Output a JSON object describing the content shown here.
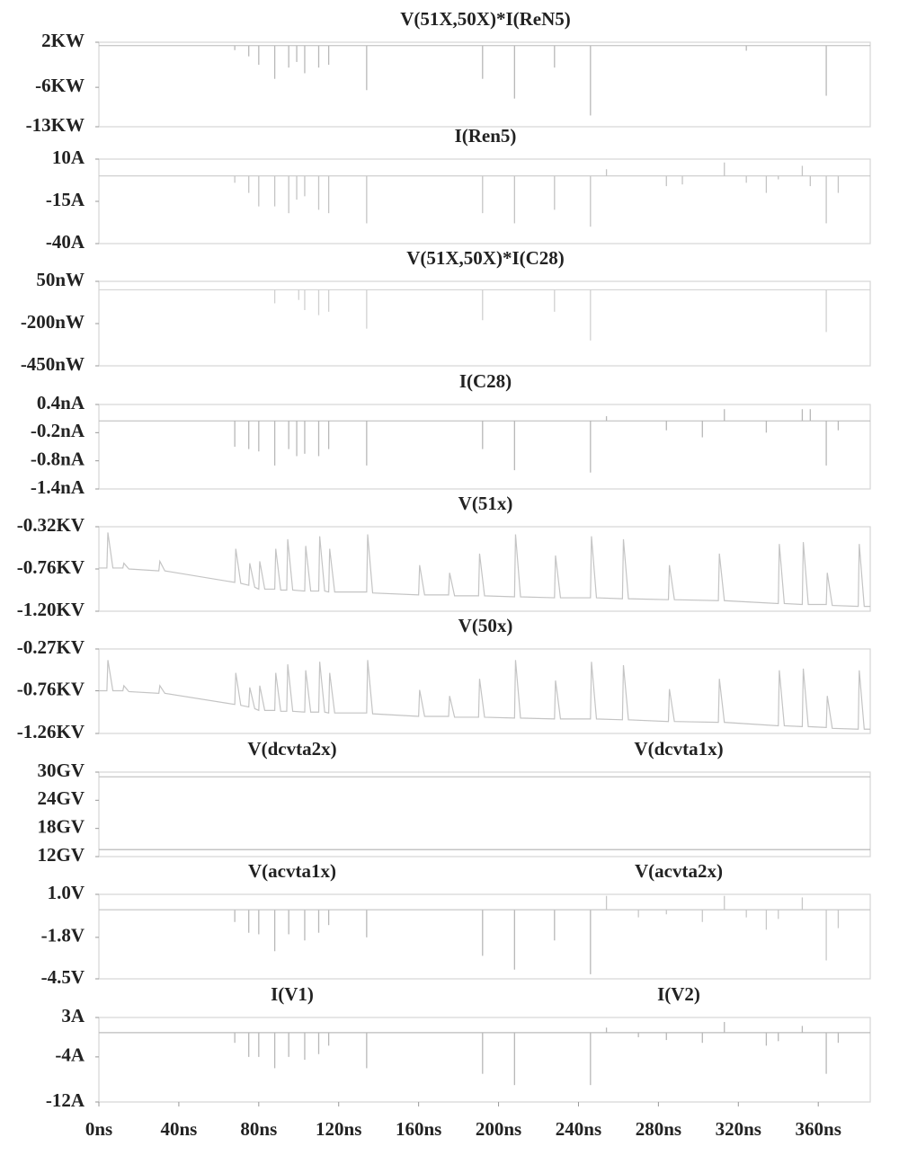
{
  "chart_data": [
    {
      "type": "spike",
      "xlim": [
        0,
        386
      ],
      "ylim": [
        -13,
        2
      ],
      "yticks": [
        {
          "value": 2,
          "label": "2KW"
        },
        {
          "value": -6,
          "label": "-6KW"
        },
        {
          "value": -13,
          "label": "-13KW"
        }
      ],
      "series": [
        {
          "name": "V(51X,50X)*I(ReN5)",
          "color": "#b8b8b8",
          "label_color": "#333333",
          "base": 1.4,
          "x": [
            68,
            75,
            80,
            88,
            95,
            99,
            103,
            110,
            115,
            134,
            192,
            208,
            228,
            246,
            324,
            364
          ],
          "values": [
            0.6,
            -0.5,
            -2,
            -4.5,
            -2.5,
            -1.5,
            -3.5,
            -2.5,
            -2,
            -6.5,
            -4.5,
            -8,
            -2.5,
            -11,
            0.5,
            -7.5
          ]
        }
      ]
    },
    {
      "type": "spike",
      "xlim": [
        0,
        386
      ],
      "ylim": [
        -40,
        10
      ],
      "yticks": [
        {
          "value": 10,
          "label": "10A"
        },
        {
          "value": -15,
          "label": "-15A"
        },
        {
          "value": -40,
          "label": "-40A"
        }
      ],
      "series": [
        {
          "name": "I(Ren5)",
          "color": "#c4c4c4",
          "label_color": "#8a8a8a",
          "base": 0,
          "x": [
            68,
            75,
            80,
            88,
            95,
            99,
            103,
            110,
            115,
            134,
            192,
            208,
            228,
            246,
            254,
            284,
            292,
            313,
            324,
            334,
            340,
            352,
            356,
            364,
            370
          ],
          "values": [
            -4,
            -10,
            -18,
            -18,
            -22,
            -14,
            -12,
            -20,
            -22,
            -28,
            -22,
            -28,
            -20,
            -30,
            4,
            -6,
            -5,
            8,
            -4,
            -10,
            -2,
            6,
            -6,
            -28,
            -10
          ]
        }
      ]
    },
    {
      "type": "spike",
      "xlim": [
        0,
        386
      ],
      "ylim": [
        -450,
        50
      ],
      "yticks": [
        {
          "value": 50,
          "label": "50nW"
        },
        {
          "value": -200,
          "label": "-200nW"
        },
        {
          "value": -450,
          "label": "-450nW"
        }
      ],
      "series": [
        {
          "name": "V(51X,50X)*I(C28)",
          "color": "#d0d0d0",
          "label_color": "#cfcfcf",
          "base": 0,
          "x": [
            88,
            100,
            103,
            110,
            115,
            134,
            192,
            228,
            246,
            364
          ],
          "values": [
            -80,
            -60,
            -120,
            -150,
            -130,
            -230,
            -180,
            -130,
            -300,
            -250
          ]
        }
      ]
    },
    {
      "type": "spike",
      "xlim": [
        0,
        386
      ],
      "ylim": [
        -1.4,
        0.4
      ],
      "yticks": [
        {
          "value": 0.4,
          "label": "0.4nA"
        },
        {
          "value": -0.2,
          "label": "-0.2nA"
        },
        {
          "value": -0.8,
          "label": "-0.8nA"
        },
        {
          "value": -1.4,
          "label": "-1.4nA"
        }
      ],
      "series": [
        {
          "name": "I(C28)",
          "color": "#b8b8b8",
          "label_color": "#444444",
          "base": 0.05,
          "x": [
            68,
            75,
            80,
            88,
            95,
            99,
            103,
            110,
            115,
            134,
            192,
            208,
            246,
            254,
            284,
            302,
            313,
            334,
            352,
            356,
            364,
            370
          ],
          "values": [
            -0.5,
            -0.55,
            -0.6,
            -0.9,
            -0.55,
            -0.7,
            -0.65,
            -0.7,
            -0.55,
            -0.9,
            -0.55,
            -1.0,
            -1.05,
            0.15,
            -0.15,
            -0.3,
            0.3,
            -0.2,
            0.3,
            0.3,
            -0.9,
            -0.15
          ]
        }
      ]
    },
    {
      "type": "line",
      "xlim": [
        0,
        386
      ],
      "ylim": [
        -1.2,
        -0.32
      ],
      "yticks": [
        {
          "value": -0.32,
          "label": "-0.32KV"
        },
        {
          "value": -0.76,
          "label": "-0.76KV"
        },
        {
          "value": -1.2,
          "label": "-1.20KV"
        }
      ],
      "series": [
        {
          "name": "V(51x)",
          "color": "#c4c4c4",
          "label_color": "#555555",
          "x": [
            0,
            4,
            4.5,
            7,
            12,
            12.5,
            15,
            30,
            30.5,
            33,
            68,
            68.5,
            71,
            75,
            75.5,
            78,
            80,
            80.5,
            83,
            88,
            88.5,
            91,
            94,
            94.5,
            97,
            103,
            103.5,
            106,
            110,
            110.5,
            113,
            115,
            115.5,
            118,
            134,
            134.5,
            137,
            160,
            160.5,
            163,
            175,
            175.5,
            178,
            190,
            190.5,
            193,
            208,
            208.5,
            211,
            228,
            228.5,
            231,
            246,
            246.5,
            249,
            262,
            262.5,
            265,
            285,
            285.5,
            288,
            310,
            310.5,
            313,
            340,
            340.5,
            343,
            352,
            352.5,
            355,
            364,
            364.5,
            367,
            380,
            380.5,
            383,
            386
          ],
          "values": [
            -0.75,
            -0.75,
            -0.38,
            -0.75,
            -0.75,
            -0.7,
            -0.76,
            -0.78,
            -0.68,
            -0.78,
            -0.9,
            -0.55,
            -0.91,
            -0.93,
            -0.7,
            -0.95,
            -0.97,
            -0.68,
            -0.97,
            -0.97,
            -0.55,
            -0.98,
            -0.98,
            -0.45,
            -0.98,
            -0.99,
            -0.52,
            -0.99,
            -0.99,
            -0.42,
            -0.99,
            -1.0,
            -0.55,
            -1.0,
            -1.0,
            -0.4,
            -1.01,
            -1.03,
            -0.72,
            -1.03,
            -1.03,
            -0.8,
            -1.04,
            -1.04,
            -0.6,
            -1.04,
            -1.05,
            -0.4,
            -1.05,
            -1.06,
            -0.62,
            -1.06,
            -1.06,
            -0.42,
            -1.06,
            -1.07,
            -0.45,
            -1.07,
            -1.08,
            -0.72,
            -1.08,
            -1.09,
            -0.6,
            -1.09,
            -1.12,
            -0.5,
            -1.12,
            -1.13,
            -0.48,
            -1.13,
            -1.13,
            -0.8,
            -1.14,
            -1.15,
            -0.5,
            -1.15,
            -1.15
          ]
        }
      ]
    },
    {
      "type": "line",
      "xlim": [
        0,
        386
      ],
      "ylim": [
        -1.26,
        -0.27
      ],
      "yticks": [
        {
          "value": -0.27,
          "label": "-0.27KV"
        },
        {
          "value": -0.76,
          "label": "-0.76KV"
        },
        {
          "value": -1.26,
          "label": "-1.26KV"
        }
      ],
      "series": [
        {
          "name": "V(50x)",
          "color": "#c4c4c4",
          "label_color": "#555555",
          "x": [
            0,
            4,
            4.5,
            7,
            12,
            12.5,
            15,
            30,
            30.5,
            33,
            68,
            68.5,
            71,
            75,
            75.5,
            78,
            80,
            80.5,
            83,
            88,
            88.5,
            91,
            94,
            94.5,
            97,
            103,
            103.5,
            106,
            110,
            110.5,
            113,
            115,
            115.5,
            118,
            134,
            134.5,
            137,
            160,
            160.5,
            163,
            175,
            175.5,
            178,
            190,
            190.5,
            193,
            208,
            208.5,
            211,
            228,
            228.5,
            231,
            246,
            246.5,
            249,
            262,
            262.5,
            265,
            285,
            285.5,
            288,
            310,
            310.5,
            313,
            340,
            340.5,
            343,
            352,
            352.5,
            355,
            364,
            364.5,
            367,
            380,
            380.5,
            383,
            386
          ],
          "values": [
            -0.76,
            -0.76,
            -0.4,
            -0.76,
            -0.76,
            -0.7,
            -0.77,
            -0.79,
            -0.7,
            -0.79,
            -0.92,
            -0.55,
            -0.93,
            -0.95,
            -0.72,
            -0.97,
            -0.99,
            -0.7,
            -0.99,
            -0.99,
            -0.55,
            -1.0,
            -1.0,
            -0.45,
            -1.0,
            -1.01,
            -0.52,
            -1.01,
            -1.01,
            -0.42,
            -1.01,
            -1.02,
            -0.55,
            -1.02,
            -1.02,
            -0.4,
            -1.03,
            -1.06,
            -0.75,
            -1.06,
            -1.06,
            -0.82,
            -1.07,
            -1.07,
            -0.62,
            -1.07,
            -1.08,
            -0.4,
            -1.08,
            -1.09,
            -0.64,
            -1.09,
            -1.09,
            -0.42,
            -1.09,
            -1.1,
            -0.46,
            -1.1,
            -1.12,
            -0.74,
            -1.12,
            -1.13,
            -0.62,
            -1.13,
            -1.17,
            -0.52,
            -1.17,
            -1.18,
            -0.5,
            -1.18,
            -1.19,
            -0.82,
            -1.2,
            -1.21,
            -0.52,
            -1.21,
            -1.21
          ]
        }
      ]
    },
    {
      "type": "line",
      "xlim": [
        0,
        386
      ],
      "ylim": [
        12,
        30
      ],
      "yticks": [
        {
          "value": 30,
          "label": "30GV"
        },
        {
          "value": 24,
          "label": "24GV"
        },
        {
          "value": 18,
          "label": "18GV"
        },
        {
          "value": 12,
          "label": "12GV"
        }
      ],
      "series": [
        {
          "name": "V(dcvta2x)",
          "color": "#c4c4c4",
          "label_color": "#333333",
          "x": [
            0,
            386
          ],
          "values": [
            29,
            29
          ]
        },
        {
          "name": "V(dcvta1x)",
          "color": "#b0b0b0",
          "label_color": "#555555",
          "x": [
            0,
            386
          ],
          "values": [
            13.5,
            13.5
          ]
        }
      ]
    },
    {
      "type": "spike",
      "xlim": [
        0,
        386
      ],
      "ylim": [
        -4.5,
        1.0
      ],
      "yticks": [
        {
          "value": 1.0,
          "label": "1.0V"
        },
        {
          "value": -1.8,
          "label": "-1.8V"
        },
        {
          "value": -4.5,
          "label": "-4.5V"
        }
      ],
      "series": [
        {
          "name": "V(acvta1x)",
          "color": "#b8b8b8",
          "label_color": "#333333",
          "base": 0,
          "x": [
            68,
            75,
            80,
            88,
            95,
            103,
            110,
            115,
            134,
            192,
            208,
            228,
            246
          ],
          "values": [
            -0.8,
            -1.5,
            -1.6,
            -2.7,
            -1.6,
            -2.0,
            -1.5,
            -1.0,
            -1.8,
            -3.0,
            -3.9,
            -2.0,
            -4.2
          ]
        },
        {
          "name": "V(acvta2x)",
          "color": "#c8c8c8",
          "label_color": "#999999",
          "base": 0,
          "x": [
            254,
            270,
            284,
            302,
            313,
            324,
            334,
            340,
            352,
            364,
            370
          ],
          "values": [
            0.9,
            -0.5,
            -0.3,
            -0.8,
            0.9,
            -0.5,
            -1.3,
            -0.6,
            0.8,
            -3.3,
            -1.2
          ]
        }
      ]
    },
    {
      "type": "spike",
      "xlim": [
        0,
        386
      ],
      "ylim": [
        -12,
        3
      ],
      "xticks": [
        {
          "value": 0,
          "label": "0ns"
        },
        {
          "value": 40,
          "label": "40ns"
        },
        {
          "value": 80,
          "label": "80ns"
        },
        {
          "value": 120,
          "label": "120ns"
        },
        {
          "value": 160,
          "label": "160ns"
        },
        {
          "value": 200,
          "label": "200ns"
        },
        {
          "value": 240,
          "label": "240ns"
        },
        {
          "value": 280,
          "label": "280ns"
        },
        {
          "value": 320,
          "label": "320ns"
        },
        {
          "value": 360,
          "label": "360ns"
        }
      ],
      "yticks": [
        {
          "value": 3,
          "label": "3A"
        },
        {
          "value": -4,
          "label": "-4A"
        },
        {
          "value": -12,
          "label": "-12A"
        }
      ],
      "series": [
        {
          "name": "I(V1)",
          "color": "#b8b8b8",
          "label_color": "#333333",
          "base": 0.3,
          "x": [
            68,
            75,
            80,
            88,
            95,
            103,
            110,
            115,
            134,
            192,
            208,
            246
          ],
          "values": [
            -1.5,
            -4,
            -4,
            -6,
            -4,
            -4.5,
            -3.5,
            -2,
            -6,
            -7,
            -9,
            -9
          ]
        },
        {
          "name": "I(V2)",
          "color": "#b8b8b8",
          "label_color": "#333333",
          "base": 0.3,
          "x": [
            254,
            270,
            284,
            302,
            313,
            334,
            340,
            352,
            364,
            370
          ],
          "values": [
            1.2,
            -0.5,
            -1,
            -1.5,
            2.2,
            -2,
            -1.2,
            1.5,
            -7,
            -1.5
          ]
        }
      ]
    }
  ]
}
